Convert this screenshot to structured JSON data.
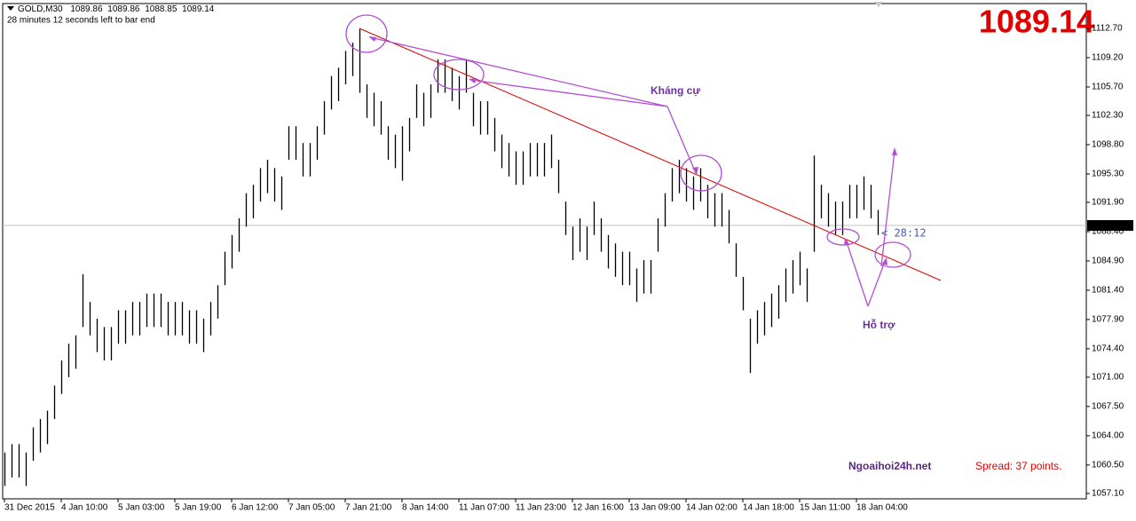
{
  "chart_data": {
    "type": "ohlc",
    "symbol": "GOLD,M30",
    "ohlc": [
      1089.86,
      1089.86,
      1088.85,
      1089.14
    ],
    "countdown": "28 minutes 12 seconds left to bar end",
    "timer": "< 28:12",
    "annotations": [
      "Kháng cự",
      "Hỗ trợ"
    ],
    "watermark": "Ngoaihoi24h.net",
    "spread": "Spread: 37 points.",
    "color": "#000000",
    "ylim": [
      1056.46,
      1115.67
    ],
    "yticks": [
      {
        "value": 1112.7,
        "label": "1112.70"
      },
      {
        "value": 1109.2,
        "label": "1109.20"
      },
      {
        "value": 1105.7,
        "label": "1105.70"
      },
      {
        "value": 1102.3,
        "label": "1102.30"
      },
      {
        "value": 1098.8,
        "label": "1098.80"
      },
      {
        "value": 1095.3,
        "label": "1095.30"
      },
      {
        "value": 1091.9,
        "label": "1091.90"
      },
      {
        "value": 1088.4,
        "label": "1088.40"
      },
      {
        "value": 1084.9,
        "label": "1084.90"
      },
      {
        "value": 1081.4,
        "label": "1081.40"
      },
      {
        "value": 1077.9,
        "label": "1077.90"
      },
      {
        "value": 1074.4,
        "label": "1074.40"
      },
      {
        "value": 1071,
        "label": "1071.00"
      },
      {
        "value": 1067.5,
        "label": "1067.50"
      },
      {
        "value": 1064,
        "label": "1064.00"
      },
      {
        "value": 1060.5,
        "label": "1060.50"
      },
      {
        "value": 1057.1,
        "label": "1057.10"
      }
    ],
    "categories": [
      "31 Dec 2015",
      null,
      null,
      null,
      null,
      null,
      null,
      null,
      "4 Jan 10:00",
      null,
      null,
      null,
      null,
      null,
      null,
      null,
      "5 Jan 03:00",
      null,
      null,
      null,
      null,
      null,
      null,
      null,
      "5 Jan 19:00",
      null,
      null,
      null,
      null,
      null,
      null,
      null,
      "6 Jan 12:00",
      null,
      null,
      null,
      null,
      null,
      null,
      null,
      "7 Jan 05:00",
      null,
      null,
      null,
      null,
      null,
      null,
      null,
      "7 Jan 21:00",
      null,
      null,
      null,
      null,
      null,
      null,
      null,
      "8 Jan 14:00",
      null,
      null,
      null,
      null,
      null,
      null,
      null,
      "11 Jan 07:00",
      null,
      null,
      null,
      null,
      null,
      null,
      null,
      "11 Jan 23:00",
      null,
      null,
      null,
      null,
      null,
      null,
      null,
      "12 Jan 16:00",
      null,
      null,
      null,
      null,
      null,
      null,
      null,
      "13 Jan 09:00",
      null,
      null,
      null,
      null,
      null,
      null,
      null,
      "14 Jan 02:00",
      null,
      null,
      null,
      null,
      null,
      null,
      null,
      "14 Jan 18:00",
      null,
      null,
      null,
      null,
      null,
      null,
      null,
      "15 Jan 11:00",
      null,
      null,
      null,
      null,
      null,
      null,
      null,
      "18 Jan 04:00",
      null,
      null,
      null
    ],
    "high": [
      1062,
      1063,
      1063,
      1062,
      1065,
      1066,
      1067,
      1070,
      1073,
      1075,
      1076,
      1083.3,
      1080,
      1078,
      1077,
      1077,
      1079,
      1079,
      1080,
      1080,
      1081,
      1081,
      1081,
      1080,
      1080,
      1080,
      1079,
      1079,
      1078,
      1080,
      1082,
      1086,
      1088,
      1090,
      1093,
      1094,
      1096,
      1097,
      1096,
      1095,
      1101,
      1101,
      1099,
      1099,
      1101,
      1104,
      1107,
      1108,
      1110,
      1111,
      1112.7,
      1106,
      1105,
      1104,
      1101,
      1100,
      1101,
      1102,
      1106,
      1105,
      1106,
      1109,
      1109,
      1108,
      1107,
      1109,
      1105,
      1104,
      1104,
      1102,
      1100,
      1099,
      1098,
      1098,
      1099,
      1099,
      1099,
      1100,
      1097,
      1092,
      1089,
      1090,
      1089,
      1092,
      1090,
      1088,
      1087,
      1086,
      1086,
      1084,
      1085,
      1085,
      1090,
      1093,
      1096,
      1097,
      1096,
      1095,
      1096,
      1094,
      1093,
      1093,
      1091,
      1087,
      1083,
      1078,
      1079,
      1080,
      1081,
      1082,
      1084,
      1085,
      1086,
      1084,
      1097.5,
      1094,
      1093,
      1092,
      1092,
      1094,
      1094,
      1095,
      1094,
      1091
    ],
    "low": [
      1058,
      1059,
      1059,
      1058,
      1061,
      1062,
      1063,
      1066,
      1069,
      1071,
      1072,
      1077,
      1076,
      1074,
      1073,
      1073,
      1075,
      1075,
      1076,
      1076,
      1077,
      1077,
      1077,
      1076,
      1076,
      1076,
      1075,
      1075,
      1074,
      1076,
      1078,
      1082,
      1084,
      1086,
      1089,
      1090,
      1092,
      1093,
      1092,
      1091,
      1097,
      1097,
      1095,
      1095,
      1097,
      1100,
      1103,
      1104,
      1106,
      1107,
      1105,
      1102,
      1101,
      1100,
      1097,
      1096,
      1094.5,
      1098,
      1102,
      1101,
      1102,
      1105,
      1105,
      1104,
      1103,
      1105,
      1101,
      1100,
      1100,
      1098,
      1096,
      1095,
      1094,
      1094,
      1095,
      1095,
      1095,
      1096,
      1093,
      1088,
      1085,
      1086,
      1085,
      1088,
      1086,
      1084,
      1083,
      1082,
      1082,
      1080,
      1081,
      1081,
      1086,
      1089,
      1092,
      1093,
      1092,
      1091,
      1092,
      1090,
      1089,
      1089,
      1087,
      1083,
      1079,
      1071.5,
      1075,
      1076,
      1077,
      1078,
      1080,
      1081,
      1082,
      1080,
      1086,
      1090,
      1089,
      1088,
      1088,
      1090,
      1090,
      1091,
      1090,
      1088
    ]
  }
}
